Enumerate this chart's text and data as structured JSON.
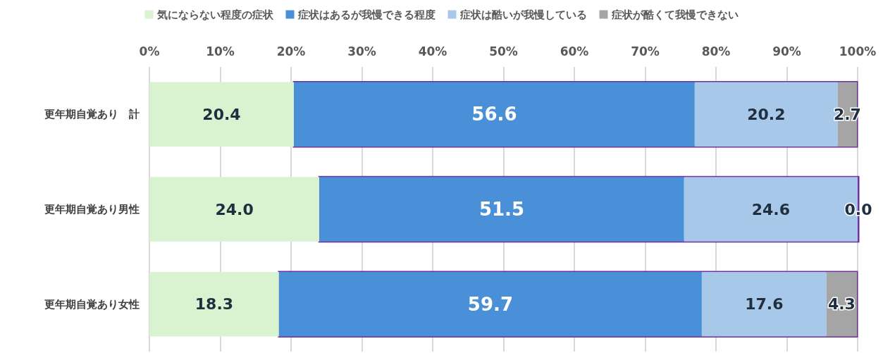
{
  "chart_data": {
    "type": "bar",
    "orientation": "horizontal",
    "stacked": true,
    "categories": [
      "更年期自覚あり　計",
      "更年期自覚あり男性",
      "更年期自覚あり女性"
    ],
    "series": [
      {
        "name": "気にならない程度の症状",
        "color": "#d9f2d0",
        "values": [
          20.4,
          24.0,
          18.3
        ],
        "value_labels": [
          "20.4",
          "24.0",
          "18.3"
        ]
      },
      {
        "name": "症状はあるが我慢できる程度",
        "color": "#4a90d9",
        "values": [
          56.6,
          51.5,
          59.7
        ],
        "value_labels": [
          "56.6",
          "51.5",
          "59.7"
        ]
      },
      {
        "name": "症状は酷いが我慢している",
        "color": "#a8c8ea",
        "values": [
          20.2,
          24.6,
          17.6
        ],
        "value_labels": [
          "20.2",
          "24.6",
          "17.6"
        ]
      },
      {
        "name": "症状が酷くて我慢できない",
        "color": "#a5a5a5",
        "values": [
          2.7,
          0.0,
          4.3
        ],
        "value_labels": [
          "2.7",
          "0.0",
          "4.3"
        ]
      }
    ],
    "xlim": [
      0,
      100
    ],
    "xticks": [
      {
        "value": 0,
        "label": "0%"
      },
      {
        "value": 10,
        "label": "10%"
      },
      {
        "value": 20,
        "label": "20%"
      },
      {
        "value": 30,
        "label": "30%"
      },
      {
        "value": 40,
        "label": "40%"
      },
      {
        "value": 50,
        "label": "50%"
      },
      {
        "value": 60,
        "label": "60%"
      },
      {
        "value": 70,
        "label": "70%"
      },
      {
        "value": 80,
        "label": "80%"
      },
      {
        "value": 90,
        "label": "90%"
      },
      {
        "value": 100,
        "label": "100%"
      }
    ],
    "grid": "x",
    "legend": "top"
  }
}
